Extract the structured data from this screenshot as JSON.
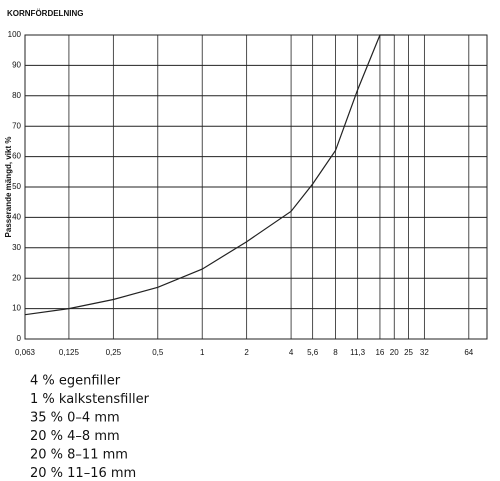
{
  "chart_data": {
    "type": "line",
    "title": "KORNFÖRDELNING",
    "ylabel": "Passerande mängd, vikt %",
    "x": [
      0.063,
      0.125,
      0.25,
      0.5,
      1,
      2,
      4,
      5.6,
      8,
      11.3,
      16,
      20
    ],
    "values": [
      8,
      10,
      13,
      17,
      23,
      32,
      42,
      51,
      62,
      82,
      100,
      100
    ],
    "color": "#222222",
    "xscale": "log",
    "xlim": [
      0.063,
      85
    ],
    "xticks": [
      {
        "value": 0.063,
        "label": "0,063"
      },
      {
        "value": 0.125,
        "label": "0,125"
      },
      {
        "value": 0.25,
        "label": "0,25"
      },
      {
        "value": 0.5,
        "label": "0,5"
      },
      1,
      2,
      4,
      {
        "value": 5.6,
        "label": "5,6"
      },
      8,
      {
        "value": 11.3,
        "label": "11,3"
      },
      16,
      20,
      25,
      32,
      64
    ],
    "ylim": [
      0,
      100
    ],
    "yticks": [
      0,
      10,
      20,
      30,
      40,
      50,
      60,
      70,
      80,
      90,
      100
    ],
    "grid": true,
    "notes": [
      "4 % egenfiller",
      "1 % kalkstensfiller",
      "35 % 0–4 mm",
      "20 % 4–8 mm",
      "20 % 8–11 mm",
      "20 % 11–16 mm"
    ]
  }
}
